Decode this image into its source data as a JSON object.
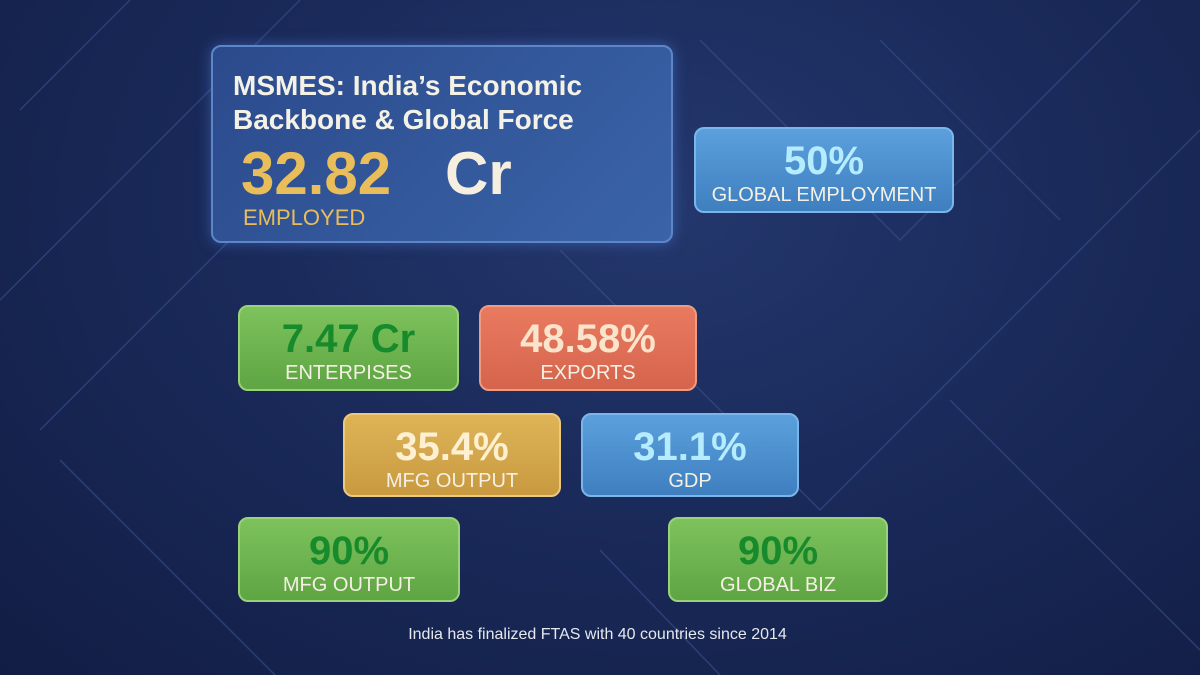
{
  "title": "MSMES: India’s Economic Backbone & Global Force",
  "headline": {
    "number": "32.82",
    "unit": "Cr",
    "label": "EMPLOYED"
  },
  "cards": [
    {
      "value": "50%",
      "label": "GLOBAL EMPLOYMENT"
    },
    {
      "value": "7.47 Cr",
      "label": "ENTERPISES"
    },
    {
      "value": "48.58%",
      "label": "EXPORTS"
    },
    {
      "value": "35.4%",
      "label": "MFG OUTPUT"
    },
    {
      "value": "31.1%",
      "label": "GDP"
    },
    {
      "value": "90%",
      "label": "MFG OUTPUT"
    },
    {
      "value": "90%",
      "label": "GLOBAL BIZ"
    }
  ],
  "footer": "India has finalized FTAS with 40 countries since 2014"
}
